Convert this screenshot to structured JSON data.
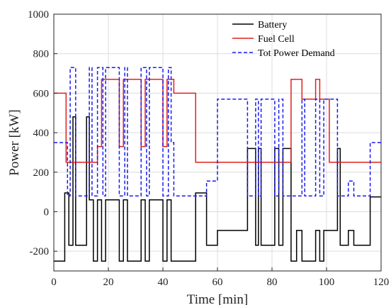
{
  "chart_data": {
    "type": "line",
    "xlabel": "Time [min]",
    "ylabel": "Power [kW]",
    "xlim": [
      0,
      120
    ],
    "ylim": [
      -300,
      1000
    ],
    "xticks": [
      0,
      20,
      40,
      60,
      80,
      100,
      120
    ],
    "yticks": [
      -200,
      0,
      200,
      400,
      600,
      800,
      1000
    ],
    "grid": true,
    "legend_position": "top-right",
    "series": [
      {
        "name": "Battery",
        "color": "#000000",
        "style": "solid",
        "x": [
          0,
          4,
          4,
          5.5,
          5.5,
          7,
          7,
          8,
          8,
          12,
          12,
          13,
          13,
          14.5,
          14.5,
          16,
          16,
          17.5,
          17.5,
          19,
          19,
          24,
          24,
          25.5,
          25.5,
          27,
          27,
          32,
          32,
          33.5,
          33.5,
          35,
          35,
          40,
          40,
          41.5,
          41.5,
          43,
          43,
          52,
          52,
          56,
          56,
          60,
          60,
          71,
          71,
          74,
          74,
          75,
          75,
          76,
          76,
          81,
          81,
          82.5,
          82.5,
          84,
          84,
          87,
          87,
          89,
          89,
          91,
          91,
          96,
          96,
          97.5,
          97.5,
          99,
          99,
          104,
          104,
          105,
          105,
          108,
          108,
          110,
          110,
          116,
          116,
          120
        ],
        "y": [
          -250,
          -250,
          95,
          95,
          -170,
          -170,
          480,
          480,
          -170,
          -170,
          480,
          480,
          60,
          60,
          -250,
          -250,
          60,
          60,
          -250,
          -250,
          60,
          60,
          -250,
          -250,
          60,
          60,
          -250,
          -250,
          60,
          60,
          -250,
          -250,
          60,
          60,
          -250,
          -250,
          60,
          60,
          -250,
          -250,
          95,
          95,
          -170,
          -170,
          -95,
          -95,
          320,
          320,
          -170,
          -170,
          320,
          320,
          -170,
          -170,
          320,
          320,
          -170,
          -170,
          320,
          320,
          -250,
          -250,
          -95,
          -95,
          -250,
          -250,
          -95,
          -95,
          -250,
          -250,
          -95,
          -95,
          320,
          320,
          -170,
          -170,
          -95,
          -95,
          -170,
          -170,
          75,
          75
        ]
      },
      {
        "name": "Fuel Cell",
        "color": "#e0201b",
        "style": "solid",
        "x": [
          0,
          4.5,
          4.5,
          16,
          16,
          17.5,
          17.5,
          24,
          24,
          25.5,
          25.5,
          32,
          32,
          33.5,
          33.5,
          40,
          40,
          41.5,
          41.5,
          44,
          44,
          52,
          52,
          87,
          87,
          91,
          91,
          96,
          96,
          97.5,
          97.5,
          101,
          101,
          120
        ],
        "y": [
          600,
          600,
          250,
          250,
          330,
          330,
          670,
          670,
          330,
          330,
          670,
          670,
          330,
          330,
          670,
          670,
          330,
          330,
          670,
          670,
          600,
          600,
          250,
          250,
          670,
          670,
          570,
          570,
          670,
          670,
          570,
          570,
          250,
          250
        ]
      },
      {
        "name": "Tot Power Demand",
        "color": "#1a1af0",
        "style": "dashed",
        "x": [
          0,
          5,
          5,
          6,
          6,
          8,
          8,
          13,
          13,
          14,
          14,
          16,
          16,
          18,
          18,
          19,
          19,
          24,
          24,
          26,
          26,
          27,
          27,
          32,
          32,
          34,
          34,
          35,
          35,
          40,
          40,
          42,
          42,
          43,
          43,
          44,
          44,
          56,
          56,
          60,
          60,
          71,
          71,
          74,
          74,
          75,
          75,
          76,
          76,
          81,
          81,
          82.5,
          82.5,
          84,
          84,
          91,
          91,
          92,
          92,
          96,
          96,
          97.5,
          97.5,
          99,
          99,
          104,
          104,
          108,
          108,
          110,
          110,
          116,
          116,
          120
        ],
        "y": [
          350,
          350,
          80,
          80,
          730,
          730,
          80,
          80,
          730,
          730,
          80,
          80,
          730,
          730,
          80,
          80,
          730,
          730,
          80,
          80,
          730,
          730,
          80,
          80,
          730,
          730,
          80,
          80,
          730,
          730,
          80,
          80,
          730,
          730,
          350,
          350,
          80,
          80,
          155,
          155,
          570,
          570,
          80,
          80,
          570,
          570,
          80,
          80,
          570,
          570,
          80,
          80,
          570,
          570,
          80,
          80,
          570,
          570,
          80,
          80,
          570,
          570,
          80,
          80,
          570,
          570,
          80,
          80,
          155,
          155,
          80,
          80,
          350,
          350
        ]
      }
    ]
  }
}
